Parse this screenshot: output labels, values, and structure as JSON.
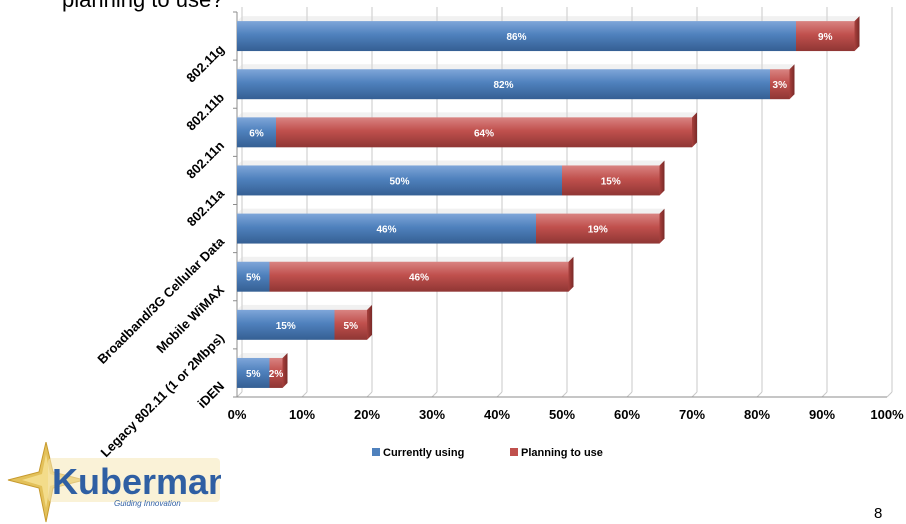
{
  "slide": {
    "title_fragment": "planning to use?",
    "page_number": "8"
  },
  "logo": {
    "name": "Kuberman",
    "tagline": "Guiding Innovation"
  },
  "chart_data": {
    "type": "bar",
    "orientation": "horizontal",
    "stacked": true,
    "categories": [
      "802.11g",
      "802.11b",
      "802.11n",
      "802.11a",
      "Broadband/3G Cellular Data",
      "Mobile WiMAX",
      "Legacy 802.11 (1 or 2Mbps)",
      "iDEN"
    ],
    "series": [
      {
        "name": "Currently using",
        "values": [
          86,
          82,
          6,
          50,
          46,
          5,
          15,
          5
        ],
        "labels": [
          "86%",
          "82%",
          "6%",
          "50%",
          "46%",
          "5%",
          "15%",
          "5%"
        ],
        "color": "#4f81bd"
      },
      {
        "name": "Planning to use",
        "values": [
          9,
          3,
          64,
          15,
          19,
          46,
          5,
          2
        ],
        "labels": [
          "9%",
          "3%",
          "64%",
          "15%",
          "19%",
          "46%",
          "5%",
          "2%"
        ],
        "color": "#c0504d"
      }
    ],
    "x_ticks": [
      "0%",
      "10%",
      "20%",
      "30%",
      "40%",
      "50%",
      "60%",
      "70%",
      "80%",
      "90%",
      "100%"
    ],
    "xlim": [
      0,
      100
    ],
    "grid": true,
    "legend_position": "bottom"
  }
}
